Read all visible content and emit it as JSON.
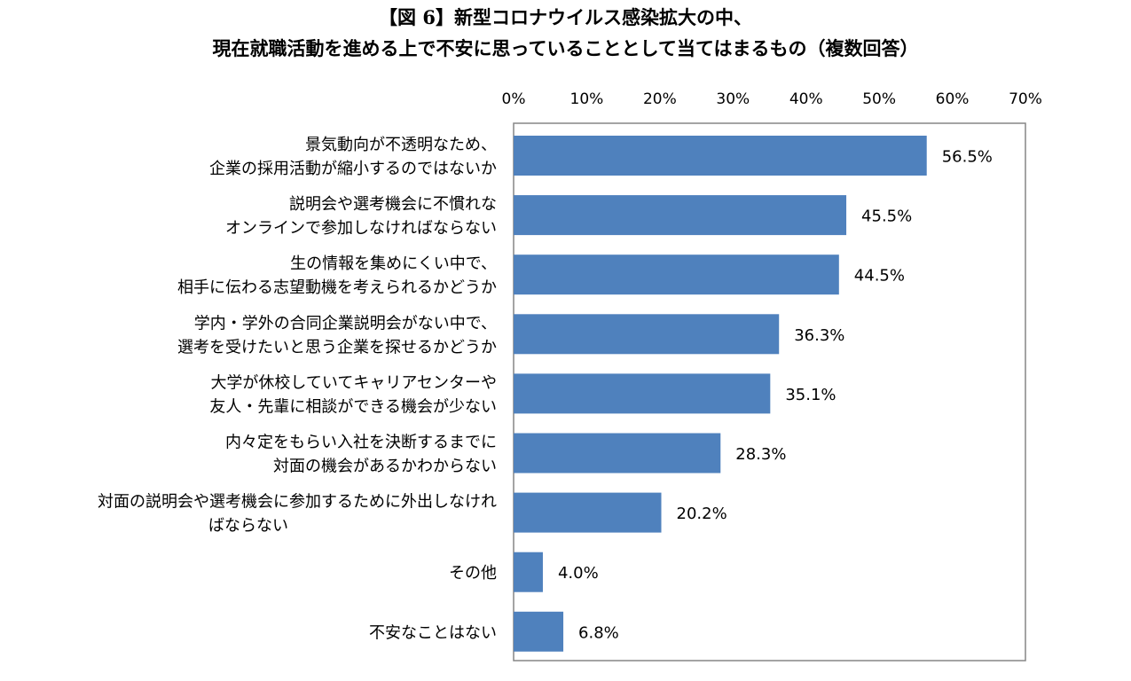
{
  "title_lines": [
    "【図 6】新型コロナウイルス感染拡大の中、",
    "現在就職活動を進める上で不安に思っていることとして当てはまるもの（複数回答）"
  ],
  "colors": {
    "bar": "#4f81bd",
    "plot_border": "#868686",
    "text": "#000000"
  },
  "chart_data": {
    "type": "bar",
    "orientation": "horizontal",
    "title": "【図 6】新型コロナウイルス感染拡大の中、現在就職活動を進める上で不安に思っていることとして当てはまるもの（複数回答）",
    "xlabel": "",
    "ylabel": "",
    "xlim": [
      0,
      70
    ],
    "x_ticks": [
      "0%",
      "10%",
      "20%",
      "30%",
      "40%",
      "50%",
      "60%",
      "70%"
    ],
    "x_axis_position": "top",
    "grid": false,
    "legend": "none",
    "categories": [
      [
        "景気動向が不透明なため、",
        "企業の採用活動が縮小するのではないか"
      ],
      [
        "説明会や選考機会に不慣れな",
        "オンラインで参加しなければならない"
      ],
      [
        "生の情報を集めにくい中で、",
        "相手に伝わる志望動機を考えられるかどうか"
      ],
      [
        "学内・学外の合同企業説明会がない中で、",
        "選考を受けたいと思う企業を探せるかどうか"
      ],
      [
        "大学が休校していてキャリアセンターや",
        "友人・先輩に相談ができる機会が少ない"
      ],
      [
        "内々定をもらい入社を決断するまでに",
        "対面の機会があるかわからない"
      ],
      [
        "対面の説明会や選考機会に参加するために外出しなけれ",
        "ばならない"
      ],
      [
        "その他"
      ],
      [
        "不安なことはない"
      ]
    ],
    "values": [
      56.5,
      45.5,
      44.5,
      36.3,
      35.1,
      28.3,
      20.2,
      4.0,
      6.8
    ],
    "value_labels": [
      "56.5%",
      "45.5%",
      "44.5%",
      "36.3%",
      "35.1%",
      "28.3%",
      "20.2%",
      "4.0%",
      "6.8%"
    ]
  }
}
